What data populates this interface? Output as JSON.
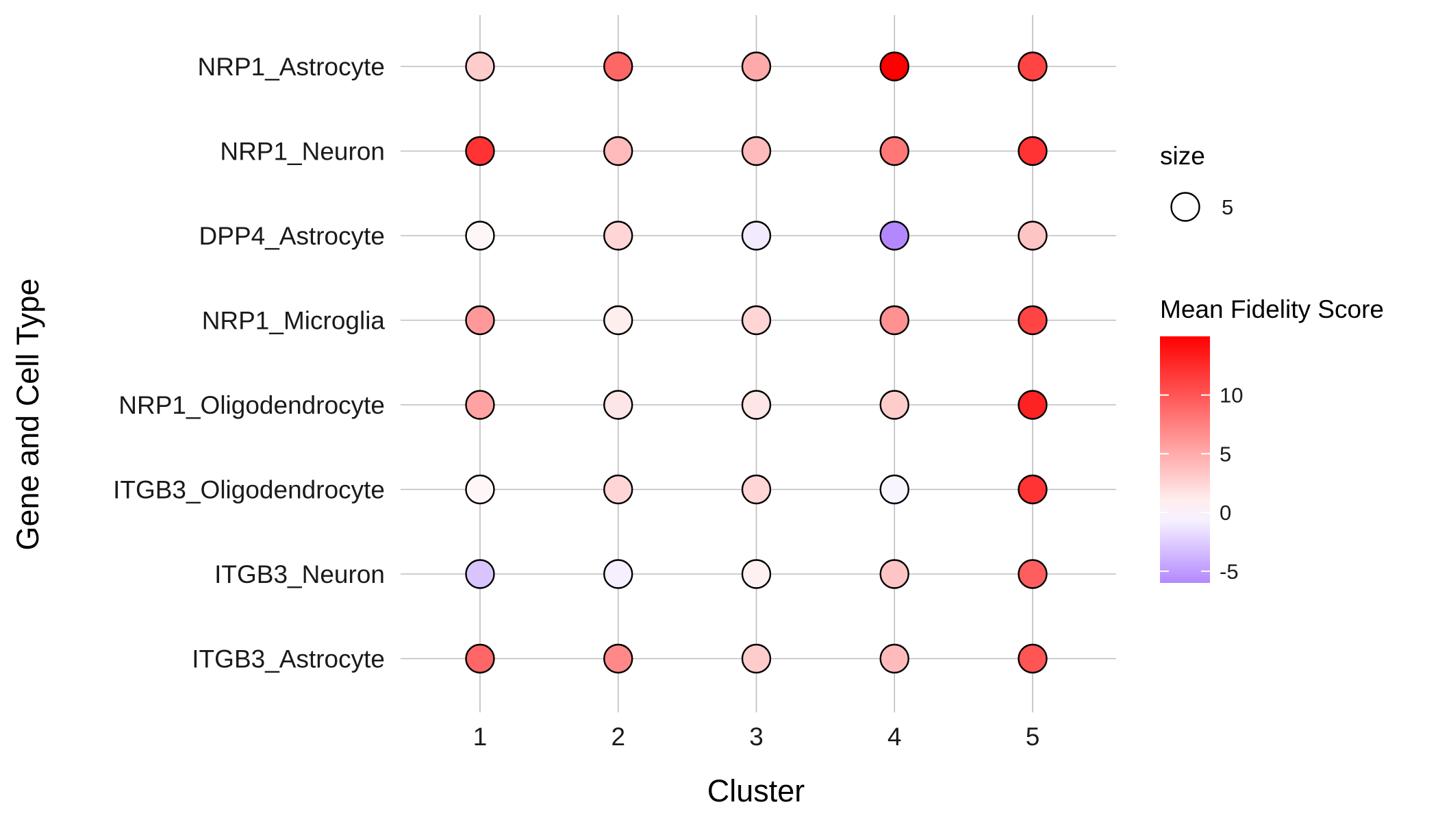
{
  "chart_data": {
    "type": "scatter",
    "subtype": "dot-plot",
    "title": "",
    "xlabel": "Cluster",
    "ylabel": "Gene and Cell Type",
    "x_categories": [
      "1",
      "2",
      "3",
      "4",
      "5"
    ],
    "y_categories": [
      "NRP1_Astrocyte",
      "NRP1_Neuron",
      "DPP4_Astrocyte",
      "NRP1_Microglia",
      "NRP1_Oligodendrocyte",
      "ITGB3_Oligodendrocyte",
      "ITGB3_Neuron",
      "ITGB3_Astrocyte"
    ],
    "series": [
      {
        "name": "NRP1_Astrocyte",
        "values": [
          3,
          9,
          5,
          15,
          11
        ]
      },
      {
        "name": "NRP1_Neuron",
        "values": [
          12,
          4,
          4,
          8,
          12
        ]
      },
      {
        "name": "DPP4_Astrocyte",
        "values": [
          0.5,
          2.5,
          -1,
          -6,
          3.5
        ]
      },
      {
        "name": "NRP1_Microglia",
        "values": [
          6,
          1,
          2.5,
          6.5,
          11
        ]
      },
      {
        "name": "NRP1_Oligodendrocyte",
        "values": [
          5.5,
          1.5,
          1.5,
          3,
          13
        ]
      },
      {
        "name": "ITGB3_Oligodendrocyte",
        "values": [
          0.5,
          2.5,
          2.5,
          -0.5,
          12
        ]
      },
      {
        "name": "ITGB3_Neuron",
        "values": [
          -3,
          -0.8,
          0.8,
          3.5,
          9.5
        ]
      },
      {
        "name": "ITGB3_Astrocyte",
        "values": [
          9,
          7,
          3,
          4,
          10
        ]
      }
    ],
    "size_legend": {
      "title": "size",
      "value_label": "5"
    },
    "color_legend": {
      "title": "Mean Fidelity Score",
      "ticks": [
        "10",
        "5",
        "0",
        "-5"
      ],
      "tick_values": [
        10,
        5,
        0,
        -5
      ],
      "range": [
        -6,
        15
      ]
    },
    "colors": {
      "low": "#b388ff",
      "mid": "#ffffff",
      "high": "#ff0000"
    },
    "grid": true
  }
}
